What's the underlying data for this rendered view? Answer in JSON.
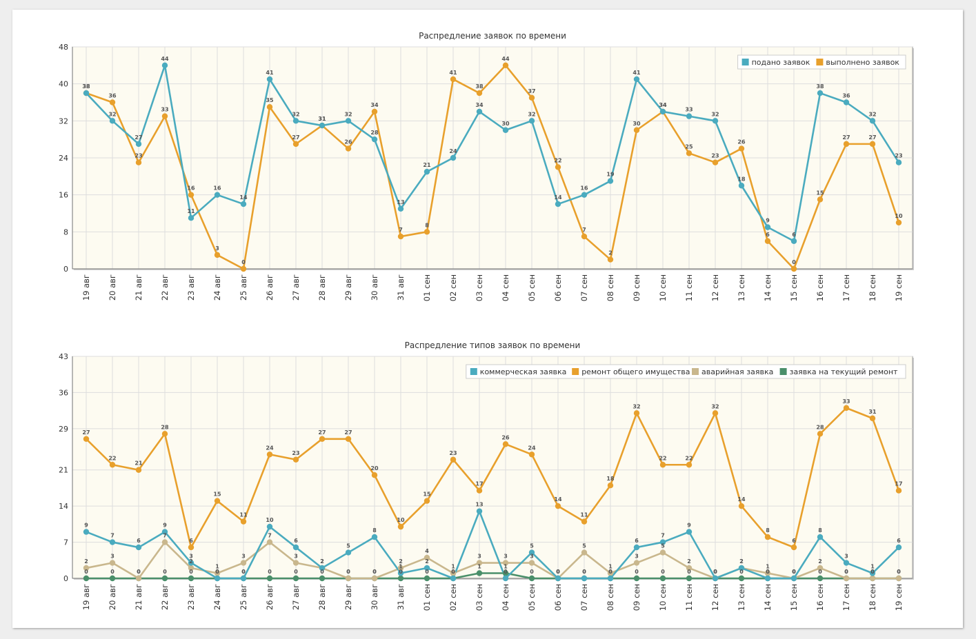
{
  "colors": {
    "blue": "#4aabbf",
    "orange": "#e8a02c",
    "tan": "#c9b78d",
    "green": "#4a8f6a",
    "plot_bg": "#fdfbf1",
    "grid": "#dddddd"
  },
  "chart_data": [
    {
      "type": "line",
      "title": "Распредление заявок по времени",
      "categories": [
        "19 авг",
        "20 авг",
        "21 авг",
        "22 авг",
        "23 авг",
        "24 авг",
        "25 авг",
        "26 авг",
        "27 авг",
        "28 авг",
        "29 авг",
        "30 авг",
        "31 авг",
        "01 сен",
        "02 сен",
        "03 сен",
        "04 сен",
        "05 сен",
        "06 сен",
        "07 сен",
        "08 сен",
        "09 сен",
        "10 сен",
        "11 сен",
        "12 сен",
        "13 сен",
        "14 сен",
        "15 сен",
        "16 сен",
        "17 сен",
        "18 сен",
        "19 сен"
      ],
      "ylim": [
        0,
        48
      ],
      "yticks": [
        0,
        8,
        16,
        24,
        32,
        40,
        48
      ],
      "grid": true,
      "legend": "top-right",
      "series": [
        {
          "name": "подано заявок",
          "color": "#4aabbf",
          "values": [
            38,
            32,
            27,
            44,
            11,
            16,
            14,
            41,
            32,
            31,
            32,
            28,
            13,
            21,
            24,
            34,
            30,
            32,
            14,
            16,
            19,
            41,
            34,
            33,
            32,
            18,
            9,
            6,
            38,
            36,
            32,
            23
          ]
        },
        {
          "name": "выполнено заявок",
          "color": "#e8a02c",
          "values": [
            38,
            36,
            23,
            33,
            16,
            3,
            0,
            35,
            27,
            31,
            26,
            34,
            7,
            8,
            41,
            38,
            44,
            37,
            22,
            7,
            2,
            30,
            34,
            25,
            23,
            26,
            6,
            0,
            15,
            27,
            27,
            10
          ]
        }
      ]
    },
    {
      "type": "line",
      "title": "Распредление типов заявок по времени",
      "categories": [
        "19 авг",
        "20 авг",
        "21 авг",
        "22 авг",
        "23 авг",
        "24 авг",
        "25 авг",
        "26 авг",
        "27 авг",
        "28 авг",
        "29 авг",
        "30 авг",
        "31 авг",
        "01 сен",
        "02 сен",
        "03 сен",
        "04 сен",
        "05 сен",
        "06 сен",
        "07 сен",
        "08 сен",
        "09 сен",
        "10 сен",
        "11 сен",
        "12 сен",
        "13 сен",
        "14 сен",
        "15 сен",
        "16 сен",
        "17 сен",
        "18 сен",
        "19 сен"
      ],
      "ylim": [
        0,
        43
      ],
      "yticks": [
        0,
        7,
        14,
        21,
        29,
        36,
        43
      ],
      "grid": true,
      "legend": "top-right",
      "series": [
        {
          "name": "коммерческая заявка",
          "color": "#4aabbf",
          "values": [
            9,
            7,
            6,
            9,
            3,
            0,
            0,
            10,
            6,
            2,
            5,
            8,
            1,
            2,
            0,
            13,
            0,
            5,
            0,
            0,
            0,
            6,
            7,
            9,
            0,
            2,
            0,
            0,
            8,
            3,
            1,
            6
          ]
        },
        {
          "name": "ремонт общего имущества",
          "color": "#e8a02c",
          "values": [
            27,
            22,
            21,
            28,
            6,
            15,
            11,
            24,
            23,
            27,
            27,
            20,
            10,
            15,
            23,
            17,
            26,
            24,
            14,
            11,
            18,
            32,
            22,
            22,
            32,
            14,
            8,
            6,
            28,
            33,
            31,
            17
          ]
        },
        {
          "name": "аварийная заявка",
          "color": "#c9b78d",
          "values": [
            2,
            3,
            0,
            7,
            2,
            1,
            3,
            7,
            3,
            2,
            0,
            0,
            2,
            4,
            1,
            3,
            3,
            3,
            0,
            5,
            1,
            3,
            5,
            2,
            0,
            2,
            1,
            0,
            2,
            0,
            0,
            0
          ]
        },
        {
          "name": "заявка на текущий ремонт",
          "color": "#4a8f6a",
          "values": [
            0,
            0,
            0,
            0,
            0,
            0,
            0,
            0,
            0,
            0,
            0,
            0,
            0,
            0,
            0,
            1,
            1,
            0,
            0,
            0,
            0,
            0,
            0,
            0,
            0,
            0,
            0,
            0,
            0,
            0,
            0,
            0
          ]
        }
      ]
    }
  ]
}
